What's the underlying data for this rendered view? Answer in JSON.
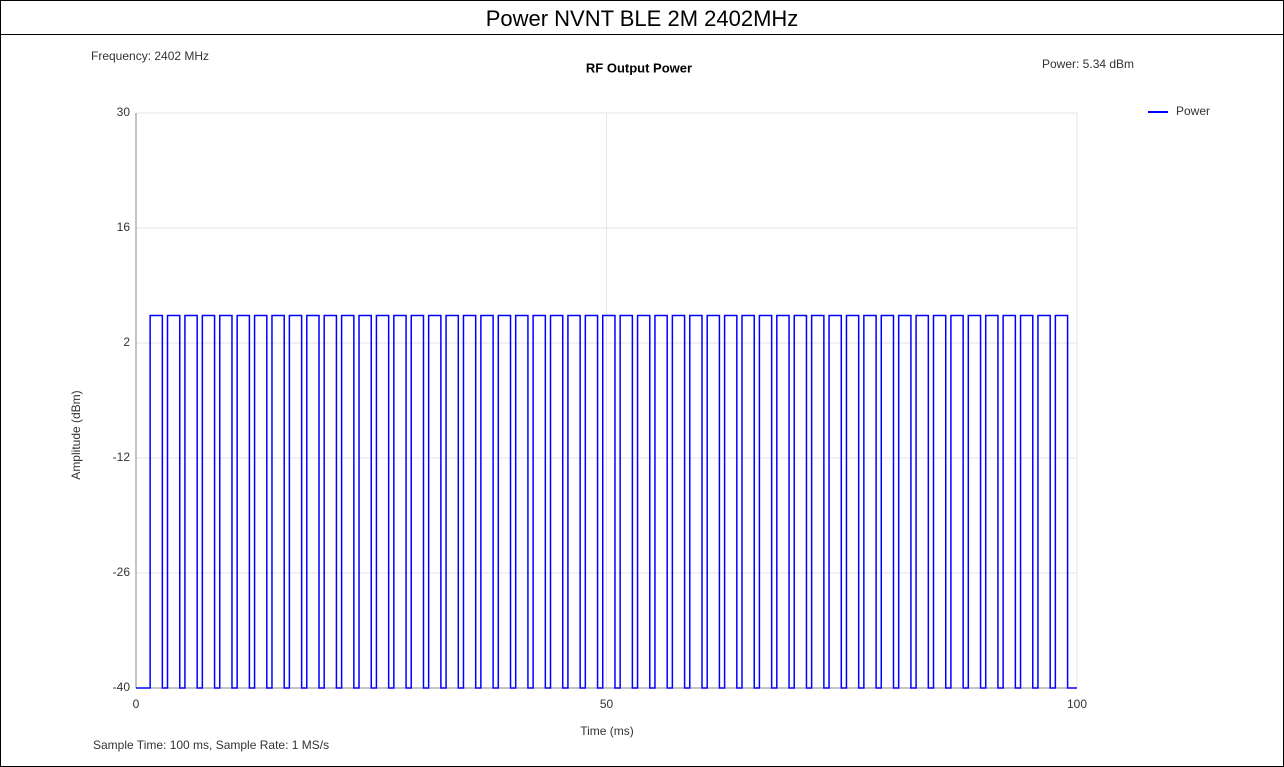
{
  "header": {
    "title": "Power NVNT BLE 2M 2402MHz"
  },
  "chart_data": {
    "type": "line",
    "title": "RF Output Power",
    "annotations": [
      "Frequency: 2402 MHz",
      "Power: 5.34 dBm",
      "Sample Time: 100 ms,  Sample Rate: 1 MS/s"
    ],
    "xlabel": "Time (ms)",
    "ylabel": "Amplitude (dBm)",
    "xlim": [
      0,
      100
    ],
    "xticks": [
      0,
      50,
      100
    ],
    "ylim": [
      -40,
      30
    ],
    "yticks": [
      -40,
      -26,
      -12,
      2,
      16,
      30
    ],
    "grid": true,
    "legend": "top-right",
    "x": [
      0,
      1.5,
      1.5,
      2.8,
      2.8,
      3.35,
      3.35,
      4.65,
      4.65,
      5.2,
      5.2,
      6.5,
      6.5,
      7.05,
      7.05,
      8.35,
      8.35,
      8.9,
      8.9,
      10.2,
      10.2,
      10.75,
      10.75,
      12.05,
      12.05,
      12.6,
      12.6,
      13.9,
      13.9,
      14.45,
      14.45,
      15.75,
      15.75,
      16.3,
      16.3,
      17.6,
      17.6,
      18.15,
      18.15,
      19.45,
      19.45,
      20,
      20,
      21.3,
      21.3,
      21.85,
      21.85,
      23.15,
      23.15,
      23.7,
      23.7,
      25,
      25,
      25.55,
      25.55,
      26.85,
      26.85,
      27.4,
      27.4,
      28.7,
      28.7,
      29.25,
      29.25,
      30.55,
      30.55,
      31.1,
      31.1,
      32.4,
      32.4,
      32.95,
      32.95,
      34.25,
      34.25,
      34.8,
      34.8,
      36.1,
      36.1,
      36.65,
      36.65,
      37.95,
      37.95,
      38.5,
      38.5,
      39.8,
      39.8,
      40.35,
      40.35,
      41.65,
      41.65,
      42.2,
      42.2,
      43.5,
      43.5,
      44.05,
      44.05,
      45.35,
      45.35,
      45.9,
      45.9,
      47.2,
      47.2,
      47.75,
      47.75,
      49.05,
      49.05,
      49.6,
      49.6,
      50.9,
      50.9,
      51.45,
      51.45,
      52.75,
      52.75,
      53.3,
      53.3,
      54.6,
      54.6,
      55.15,
      55.15,
      56.45,
      56.45,
      57,
      57,
      58.3,
      58.3,
      58.85,
      58.85,
      60.15,
      60.15,
      60.7,
      60.7,
      62,
      62,
      62.55,
      62.55,
      63.85,
      63.85,
      64.4,
      64.4,
      65.7,
      65.7,
      66.25,
      66.25,
      67.55,
      67.55,
      68.1,
      68.1,
      69.4,
      69.4,
      69.95,
      69.95,
      71.25,
      71.25,
      71.8,
      71.8,
      73.1,
      73.1,
      73.65,
      73.65,
      74.95,
      74.95,
      75.5,
      75.5,
      76.8,
      76.8,
      77.35,
      77.35,
      78.65,
      78.65,
      79.2,
      79.2,
      80.5,
      80.5,
      81.05,
      81.05,
      82.35,
      82.35,
      82.9,
      82.9,
      84.2,
      84.2,
      84.75,
      84.75,
      86.05,
      86.05,
      86.6,
      86.6,
      87.9,
      87.9,
      88.45,
      88.45,
      89.75,
      89.75,
      90.3,
      90.3,
      91.6,
      91.6,
      92.15,
      92.15,
      93.45,
      93.45,
      94,
      94,
      95.3,
      95.3,
      95.85,
      95.85,
      97.15,
      97.15,
      97.7,
      97.7,
      99,
      99,
      100
    ],
    "series": [
      {
        "name": "Power",
        "color": "#0000ff",
        "values": [
          -40,
          -40,
          5.34,
          5.34,
          -40,
          -40,
          5.34,
          5.34,
          -40,
          -40,
          5.34,
          5.34,
          -40,
          -40,
          5.34,
          5.34,
          -40,
          -40,
          5.34,
          5.34,
          -40,
          -40,
          5.34,
          5.34,
          -40,
          -40,
          5.34,
          5.34,
          -40,
          -40,
          5.34,
          5.34,
          -40,
          -40,
          5.34,
          5.34,
          -40,
          -40,
          5.34,
          5.34,
          -40,
          -40,
          5.34,
          5.34,
          -40,
          -40,
          5.34,
          5.34,
          -40,
          -40,
          5.34,
          5.34,
          -40,
          -40,
          5.34,
          5.34,
          -40,
          -40,
          5.34,
          5.34,
          -40,
          -40,
          5.34,
          5.34,
          -40,
          -40,
          5.34,
          5.34,
          -40,
          -40,
          5.34,
          5.34,
          -40,
          -40,
          5.34,
          5.34,
          -40,
          -40,
          5.34,
          5.34,
          -40,
          -40,
          5.34,
          5.34,
          -40,
          -40,
          5.34,
          5.34,
          -40,
          -40,
          5.34,
          5.34,
          -40,
          -40,
          5.34,
          5.34,
          -40,
          -40,
          5.34,
          5.34,
          -40,
          -40,
          5.34,
          5.34,
          -40,
          -40,
          5.34,
          5.34,
          -40,
          -40,
          5.34,
          5.34,
          -40,
          -40,
          5.34,
          5.34,
          -40,
          -40,
          5.34,
          5.34,
          -40,
          -40,
          5.34,
          5.34,
          -40,
          -40,
          5.34,
          5.34,
          -40,
          -40,
          5.34,
          5.34,
          -40,
          -40,
          5.34,
          5.34,
          -40,
          -40,
          5.34,
          5.34,
          -40,
          -40,
          5.34,
          5.34,
          -40,
          -40,
          5.34,
          5.34,
          -40,
          -40,
          5.34,
          5.34,
          -40,
          -40,
          5.34,
          5.34,
          -40,
          -40,
          5.34,
          5.34,
          -40,
          -40,
          5.34,
          5.34,
          -40,
          -40,
          5.34,
          5.34,
          -40,
          -40,
          5.34,
          5.34,
          -40,
          -40,
          5.34,
          5.34,
          -40,
          -40,
          5.34,
          5.34,
          -40,
          -40,
          5.34,
          5.34,
          -40,
          -40,
          5.34,
          5.34,
          -40,
          -40,
          5.34,
          5.34,
          -40,
          -40,
          5.34,
          5.34,
          -40,
          -40,
          5.34,
          5.34,
          -40,
          -40,
          5.34,
          5.34,
          -40,
          -40,
          5.34,
          5.34,
          -40,
          -40,
          5.34,
          5.34,
          -40,
          -40
        ]
      }
    ]
  }
}
